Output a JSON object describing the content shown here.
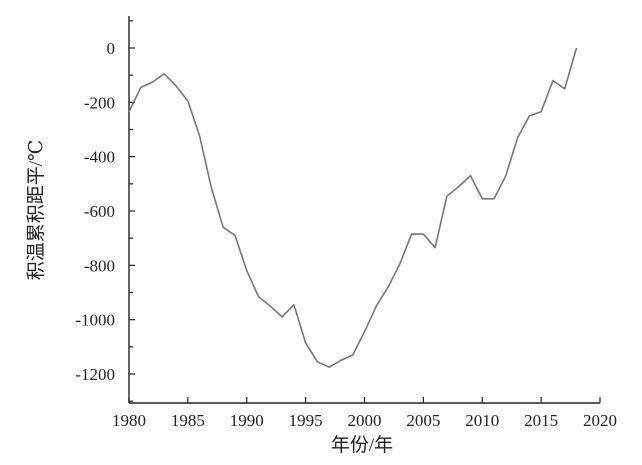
{
  "chart_data": {
    "type": "line",
    "xlabel": "年份/年",
    "ylabel": "积温累积距平/℃",
    "xlim": [
      1980,
      2020
    ],
    "ylim": [
      -1300,
      100
    ],
    "xticks": [
      1980,
      1985,
      1990,
      1995,
      2000,
      2005,
      2010,
      2015,
      2020
    ],
    "xtick_labels": [
      "1980",
      "1985",
      "1990",
      "1995",
      "2000",
      "2005",
      "2010",
      "2015",
      "2020"
    ],
    "yticks": [
      0,
      -200,
      -400,
      -600,
      -800,
      -1000,
      -1200
    ],
    "ytick_labels": [
      "0",
      "-200",
      "-400",
      "-600",
      "-800",
      "-1000",
      "-1200"
    ],
    "grid": false,
    "series": [
      {
        "color": "#777777",
        "x": [
          1980,
          1981,
          1982,
          1983,
          1984,
          1985,
          1986,
          1987,
          1988,
          1989,
          1990,
          1991,
          1992,
          1993,
          1994,
          1995,
          1996,
          1997,
          1998,
          1999,
          2000,
          2001,
          2002,
          2003,
          2004,
          2005,
          2006,
          2007,
          2008,
          2009,
          2010,
          2011,
          2012,
          2013,
          2014,
          2015,
          2016,
          2017,
          2018
        ],
        "y": [
          -235,
          -145,
          -125,
          -95,
          -140,
          -195,
          -325,
          -515,
          -660,
          -690,
          -820,
          -915,
          -950,
          -990,
          -945,
          -1085,
          -1155,
          -1175,
          -1150,
          -1130,
          -1045,
          -950,
          -880,
          -795,
          -685,
          -685,
          -735,
          -545,
          -510,
          -470,
          -555,
          -555,
          -470,
          -330,
          -250,
          -235,
          -120,
          -150,
          0
        ]
      }
    ]
  }
}
